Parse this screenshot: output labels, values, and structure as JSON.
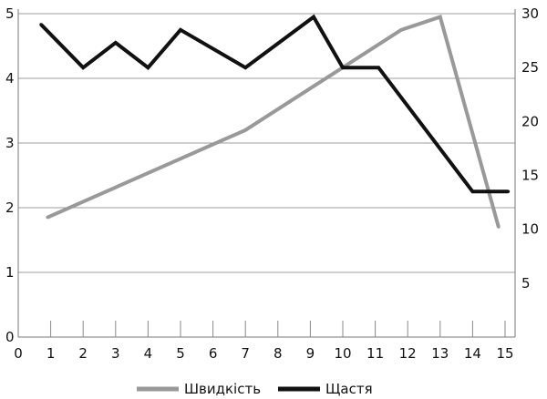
{
  "chart_data": {
    "type": "line",
    "title": "",
    "xlabel": "",
    "ylabel_left": "",
    "ylabel_right": "",
    "grid": true,
    "legend_position": "bottom",
    "x_ticks": [
      0,
      1,
      2,
      3,
      4,
      5,
      6,
      7,
      8,
      9,
      10,
      11,
      12,
      13,
      14,
      15
    ],
    "xlim": [
      0,
      15.5
    ],
    "ylim_left": [
      0,
      5
    ],
    "y_ticks_left": [
      0,
      1,
      2,
      3,
      4,
      5
    ],
    "ylim_right": [
      0,
      30
    ],
    "y_ticks_right": [
      5,
      10,
      15,
      20,
      25,
      30
    ],
    "series": [
      {
        "name": "Швидкість",
        "axis": "left",
        "color": "#999999",
        "x": [
          0.9,
          7.0,
          11.8,
          13.0,
          14.8
        ],
        "y": [
          1.85,
          3.2,
          4.75,
          4.95,
          1.7
        ]
      },
      {
        "name": "Щастя",
        "axis": "right",
        "color": "#111111",
        "x": [
          0.7,
          2.0,
          3.0,
          4.0,
          5.0,
          7.0,
          9.1,
          10.0,
          11.1,
          14.0,
          15.1
        ],
        "y": [
          29.0,
          25.0,
          27.3,
          25.0,
          28.5,
          25.0,
          29.7,
          25.0,
          25.0,
          13.5,
          13.5
        ]
      }
    ]
  }
}
